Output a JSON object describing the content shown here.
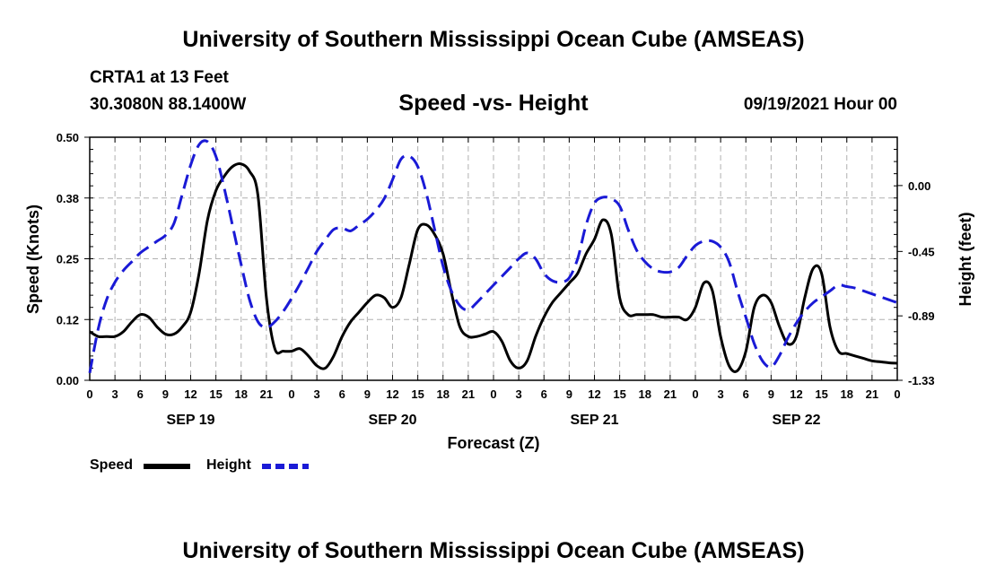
{
  "header": {
    "title_top": "University of Southern Mississippi Ocean Cube (AMSEAS)",
    "station": "CRTA1 at 13 Feet",
    "coords": "30.3080N  88.1400W",
    "subtitle": "Speed -vs- Height",
    "datetime": "09/19/2021 Hour 00",
    "title_bottom": "University of Southern Mississippi Ocean Cube (AMSEAS)"
  },
  "legend": {
    "speed_label": "Speed",
    "height_label": "Height"
  },
  "colors": {
    "speed": "#000000",
    "height": "#1a1ad6",
    "grid": "#b0b0b0"
  },
  "chart_data": {
    "type": "line",
    "title": "Speed -vs- Height",
    "xlabel": "Forecast (Z)",
    "ylabel": "Speed (Knots)",
    "y2label": "Height (feet)",
    "xlim": [
      0,
      96
    ],
    "ylim": [
      0,
      0.5
    ],
    "y2lim": [
      -1.33,
      0.33
    ],
    "x_ticks": [
      0,
      3,
      6,
      9,
      12,
      15,
      18,
      21,
      24,
      27,
      30,
      33,
      36,
      39,
      42,
      45,
      48,
      51,
      54,
      57,
      60,
      63,
      66,
      69,
      72,
      75,
      78,
      81,
      84,
      87,
      90,
      93,
      96
    ],
    "x_tick_labels": [
      "0",
      "3",
      "6",
      "9",
      "12",
      "15",
      "18",
      "21",
      "0",
      "3",
      "6",
      "9",
      "12",
      "15",
      "18",
      "21",
      "0",
      "3",
      "6",
      "9",
      "12",
      "15",
      "18",
      "21",
      "0",
      "3",
      "6",
      "9",
      "12",
      "15",
      "18",
      "21",
      "0"
    ],
    "day_labels": [
      {
        "x": 12,
        "label": "SEP 19"
      },
      {
        "x": 36,
        "label": "SEP 20"
      },
      {
        "x": 60,
        "label": "SEP 21"
      },
      {
        "x": 84,
        "label": "SEP 22"
      }
    ],
    "y_ticks": [
      0,
      0.125,
      0.25,
      0.375,
      0.5
    ],
    "y_tick_labels": [
      "0.00",
      "0.12",
      "0.25",
      "0.38",
      "0.50"
    ],
    "y2_ticks": [
      0,
      -0.45,
      -0.89,
      -1.33
    ],
    "y2_tick_labels": [
      "0.00",
      "-0.45",
      "-0.89",
      "-1.33"
    ],
    "series": [
      {
        "name": "Speed",
        "axis": "left",
        "style": "solid",
        "x": [
          0,
          1,
          2,
          3,
          4,
          5,
          6,
          7,
          8,
          9,
          10,
          11,
          12,
          13,
          14,
          15,
          16,
          17,
          18,
          19,
          20,
          21,
          22,
          23,
          24,
          25,
          26,
          27,
          28,
          29,
          30,
          31,
          32,
          33,
          34,
          35,
          36,
          37,
          38,
          39,
          40,
          41,
          42,
          43,
          44,
          45,
          46,
          47,
          48,
          49,
          50,
          51,
          52,
          53,
          54,
          55,
          56,
          57,
          58,
          59,
          60,
          61,
          62,
          63,
          64,
          65,
          66,
          67,
          68,
          69,
          70,
          71,
          72,
          73,
          74,
          75,
          76,
          77,
          78,
          79,
          80,
          81,
          82,
          83,
          84,
          85,
          86,
          87,
          88,
          89,
          90,
          91,
          92,
          93,
          94,
          95,
          96
        ],
        "values": [
          0.1,
          0.09,
          0.09,
          0.09,
          0.1,
          0.12,
          0.135,
          0.13,
          0.11,
          0.095,
          0.095,
          0.11,
          0.14,
          0.22,
          0.33,
          0.39,
          0.42,
          0.44,
          0.445,
          0.43,
          0.38,
          0.17,
          0.065,
          0.06,
          0.06,
          0.065,
          0.05,
          0.03,
          0.025,
          0.05,
          0.09,
          0.12,
          0.14,
          0.16,
          0.175,
          0.17,
          0.15,
          0.17,
          0.24,
          0.31,
          0.32,
          0.3,
          0.26,
          0.18,
          0.11,
          0.09,
          0.09,
          0.095,
          0.1,
          0.08,
          0.04,
          0.025,
          0.04,
          0.09,
          0.13,
          0.16,
          0.18,
          0.2,
          0.22,
          0.26,
          0.29,
          0.33,
          0.3,
          0.17,
          0.135,
          0.135,
          0.135,
          0.135,
          0.13,
          0.13,
          0.13,
          0.125,
          0.15,
          0.2,
          0.185,
          0.09,
          0.03,
          0.02,
          0.06,
          0.15,
          0.175,
          0.16,
          0.11,
          0.075,
          0.09,
          0.17,
          0.23,
          0.22,
          0.11,
          0.06,
          0.055,
          0.05,
          0.045,
          0.04,
          0.038,
          0.036,
          0.035
        ]
      },
      {
        "name": "Height",
        "axis": "right",
        "style": "dashed",
        "x": [
          0,
          1,
          2,
          3,
          4,
          5,
          6,
          7,
          8,
          9,
          10,
          11,
          12,
          13,
          14,
          15,
          16,
          17,
          18,
          19,
          20,
          21,
          22,
          23,
          24,
          25,
          26,
          27,
          28,
          29,
          30,
          31,
          32,
          33,
          34,
          35,
          36,
          37,
          38,
          39,
          40,
          41,
          42,
          43,
          44,
          45,
          46,
          47,
          48,
          49,
          50,
          51,
          52,
          53,
          54,
          55,
          56,
          57,
          58,
          59,
          60,
          61,
          62,
          63,
          64,
          65,
          66,
          67,
          68,
          69,
          70,
          71,
          72,
          73,
          74,
          75,
          76,
          77,
          78,
          79,
          80,
          81,
          82,
          83,
          84,
          85,
          86,
          87,
          88,
          89,
          90,
          91,
          92,
          93,
          94,
          95,
          96
        ],
        "values": [
          -1.28,
          -0.98,
          -0.78,
          -0.66,
          -0.58,
          -0.52,
          -0.46,
          -0.42,
          -0.38,
          -0.34,
          -0.26,
          -0.06,
          0.14,
          0.28,
          0.3,
          0.2,
          -0.02,
          -0.28,
          -0.54,
          -0.78,
          -0.93,
          -0.97,
          -0.93,
          -0.86,
          -0.77,
          -0.67,
          -0.56,
          -0.45,
          -0.37,
          -0.3,
          -0.29,
          -0.31,
          -0.27,
          -0.23,
          -0.17,
          -0.09,
          0.04,
          0.18,
          0.2,
          0.13,
          -0.05,
          -0.3,
          -0.55,
          -0.72,
          -0.82,
          -0.85,
          -0.8,
          -0.74,
          -0.68,
          -0.62,
          -0.56,
          -0.5,
          -0.46,
          -0.5,
          -0.6,
          -0.65,
          -0.66,
          -0.63,
          -0.5,
          -0.27,
          -0.12,
          -0.08,
          -0.09,
          -0.14,
          -0.3,
          -0.44,
          -0.52,
          -0.57,
          -0.59,
          -0.59,
          -0.56,
          -0.48,
          -0.41,
          -0.38,
          -0.38,
          -0.42,
          -0.52,
          -0.72,
          -0.9,
          -1.08,
          -1.2,
          -1.24,
          -1.16,
          -1.04,
          -0.94,
          -0.86,
          -0.8,
          -0.76,
          -0.72,
          -0.68,
          -0.69,
          -0.7,
          -0.72,
          -0.74,
          -0.76,
          -0.78,
          -0.8
        ]
      }
    ]
  }
}
